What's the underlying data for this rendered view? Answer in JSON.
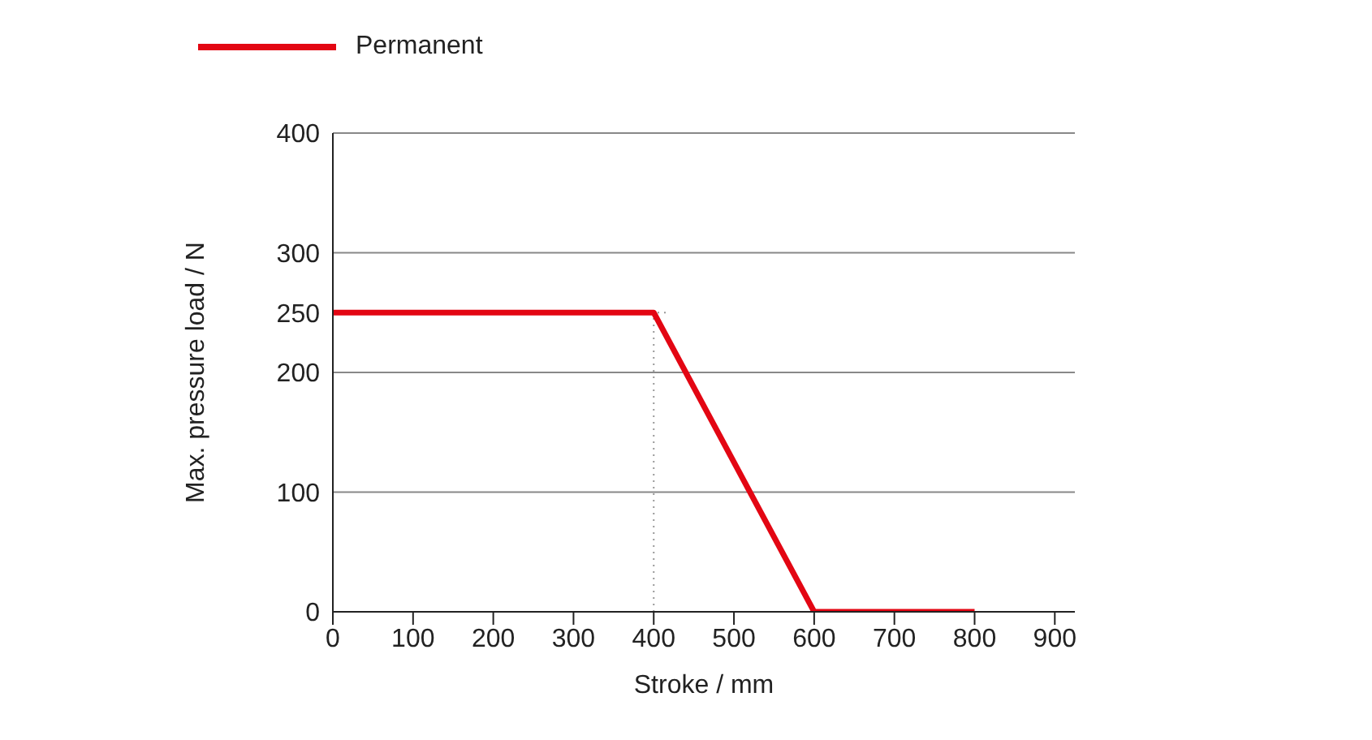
{
  "chart_data": {
    "type": "line",
    "xlabel": "Stroke / mm",
    "ylabel": "Max. pressure load / N",
    "x": [
      0,
      400,
      600,
      800
    ],
    "series": [
      {
        "name": "Permanent",
        "color": "#e30613",
        "values": [
          250,
          250,
          0,
          0
        ]
      }
    ],
    "xlim": [
      0,
      925
    ],
    "xticks": [
      0,
      100,
      200,
      300,
      400,
      500,
      600,
      700,
      800,
      900
    ],
    "ylim": [
      0,
      400
    ],
    "yticks": [
      0,
      100,
      200,
      250,
      300,
      400
    ],
    "grid": "y",
    "legend": "top left",
    "marker": "none",
    "line_style": "solid",
    "ref_lines": [
      {
        "axis": "x",
        "value": 400,
        "line_style": "dotted",
        "color": "#999999"
      },
      {
        "axis": "y",
        "value": 250,
        "line_style": "dotted",
        "color": "#999999"
      }
    ]
  }
}
